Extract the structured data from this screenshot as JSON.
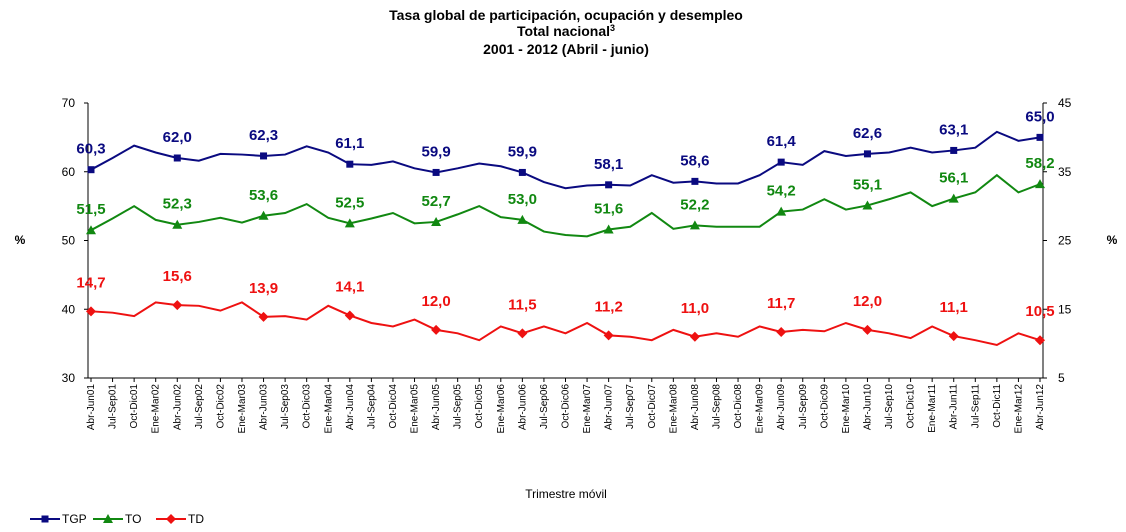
{
  "chart_data": {
    "type": "line",
    "title": "Tasa global de participación, ocupación y desempleo",
    "subtitle": "Total nacional",
    "subtitle_footnote": "3",
    "period": "2001 - 2012 (Abril - junio)",
    "x_label": "Trimestre móvil",
    "y_label": "%",
    "y2_label": "%",
    "categories": [
      "Abr-Jun01",
      "Jul-Sep01",
      "Oct-Dic01",
      "Ene-Mar02",
      "Abr-Jun02",
      "Jul-Sep02",
      "Oct-Dic02",
      "Ene-Mar03",
      "Abr-Jun03",
      "Jul-Sep03",
      "Oct-Dic03",
      "Ene-Mar04",
      "Abr-Jun04",
      "Jul-Sep04",
      "Oct-Dic04",
      "Ene-Mar05",
      "Abr-Jun05",
      "Jul-Sep05",
      "Oct-Dic05",
      "Ene-Mar06",
      "Abr-Jun06",
      "Jul-Sep06",
      "Oct-Dic06",
      "Ene-Mar07",
      "Abr-Jun07",
      "Jul-Sep07",
      "Oct-Dic07",
      "Ene-Mar08",
      "Abr-Jun08",
      "Jul-Sep08",
      "Oct-Dic08",
      "Ene-Mar09",
      "Abr-Jun09",
      "Jul-Sep09",
      "Oct-Dic09",
      "Ene-Mar10",
      "Abr-Jun10",
      "Jul-Sep10",
      "Oct-Dic10",
      "Ene-Mar11",
      "Abr-Jun11",
      "Jul-Sep11",
      "Oct-Dic11",
      "Ene-Mar12",
      "Abr-Jun12"
    ],
    "ylim": [
      30,
      70
    ],
    "yticks": [
      30,
      40,
      50,
      60,
      70
    ],
    "y2lim": [
      5,
      45
    ],
    "y2ticks": [
      5,
      15,
      25,
      35,
      45
    ],
    "series": [
      {
        "name": "TGP",
        "color": "#0a0a80",
        "marker": "square",
        "values": [
          60.3,
          62,
          63.8,
          62.8,
          62.0,
          61.6,
          62.6,
          62.5,
          62.3,
          62.5,
          63.7,
          62.8,
          61.1,
          61,
          61.5,
          60.5,
          59.9,
          60.5,
          61.2,
          60.8,
          59.9,
          58.5,
          57.6,
          58,
          58.1,
          58,
          59.5,
          58.4,
          58.6,
          58.3,
          58.3,
          59.5,
          61.4,
          61,
          63,
          62.3,
          62.6,
          62.8,
          63.5,
          62.8,
          63.1,
          63.5,
          65.8,
          64.5,
          65.0
        ],
        "value_labels": [
          "60,3",
          null,
          null,
          null,
          "62,0",
          null,
          null,
          null,
          "62,3",
          null,
          null,
          null,
          "61,1",
          null,
          null,
          null,
          "59,9",
          null,
          null,
          null,
          "59,9",
          null,
          null,
          null,
          "58,1",
          null,
          null,
          null,
          "58,6",
          null,
          null,
          null,
          "61,4",
          null,
          null,
          null,
          "62,6",
          null,
          null,
          null,
          "63,1",
          null,
          null,
          null,
          "65,0"
        ]
      },
      {
        "name": "TO",
        "color": "#118811",
        "marker": "triangle",
        "values": [
          51.5,
          53.2,
          55,
          53,
          52.3,
          52.7,
          53.3,
          52.6,
          53.6,
          54,
          55.3,
          53.3,
          52.5,
          53.2,
          54,
          52.5,
          52.7,
          53.8,
          55,
          53.4,
          53.0,
          51.3,
          50.8,
          50.6,
          51.6,
          52,
          54,
          51.7,
          52.2,
          52,
          52,
          52,
          54.2,
          54.5,
          56,
          54.5,
          55.1,
          56,
          57,
          55,
          56.1,
          57,
          59.5,
          57,
          58.2
        ],
        "value_labels": [
          "51,5",
          null,
          null,
          null,
          "52,3",
          null,
          null,
          null,
          "53,6",
          null,
          null,
          null,
          "52,5",
          null,
          null,
          null,
          "52,7",
          null,
          null,
          null,
          "53,0",
          null,
          null,
          null,
          "51,6",
          null,
          null,
          null,
          "52,2",
          null,
          null,
          null,
          "54,2",
          null,
          null,
          null,
          "55,1",
          null,
          null,
          null,
          "56,1",
          null,
          null,
          null,
          "58,2"
        ]
      },
      {
        "name": "TD",
        "color": "#ee1111",
        "marker": "diamond",
        "axis": "y2",
        "values": [
          14.7,
          14.5,
          14,
          16,
          15.6,
          15.5,
          14.8,
          16,
          13.9,
          14,
          13.5,
          15.5,
          14.1,
          13,
          12.5,
          13.5,
          12.0,
          11.5,
          10.5,
          12.5,
          11.5,
          12.5,
          11.5,
          13,
          11.2,
          11,
          10.5,
          12,
          11.0,
          11.5,
          11,
          12.5,
          11.7,
          12,
          11.8,
          13,
          12.0,
          11.5,
          10.8,
          12.5,
          11.1,
          10.5,
          9.8,
          11.5,
          10.5
        ],
        "value_labels": [
          "14,7",
          null,
          null,
          null,
          "15,6",
          null,
          null,
          null,
          "13,9",
          null,
          null,
          null,
          "14,1",
          null,
          null,
          null,
          "12,0",
          null,
          null,
          null,
          "11,5",
          null,
          null,
          null,
          "11,2",
          null,
          null,
          null,
          "11,0",
          null,
          null,
          null,
          "11,7",
          null,
          null,
          null,
          "12,0",
          null,
          null,
          null,
          "11,1",
          null,
          null,
          null,
          "10,5"
        ]
      }
    ]
  }
}
